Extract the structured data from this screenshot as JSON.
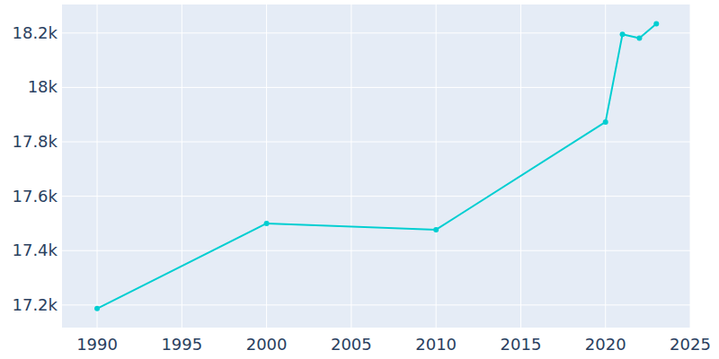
{
  "chart_data": {
    "type": "line",
    "x": [
      1990,
      2000,
      2010,
      2020,
      2021,
      2022,
      2023
    ],
    "values": [
      17187,
      17500,
      17477,
      17873,
      18195,
      18181,
      18234
    ],
    "color": "#00ced1",
    "marker": "circle",
    "xlim": [
      1987.93,
      2025
    ],
    "xticks": [
      1990,
      1995,
      2000,
      2005,
      2010,
      2015,
      2020,
      2025
    ],
    "ylim": [
      17117,
      18305
    ],
    "yticks": [
      {
        "value": 17200,
        "label": "17.2k"
      },
      {
        "value": 17400,
        "label": "17.4k"
      },
      {
        "value": 17600,
        "label": "17.6k"
      },
      {
        "value": 17800,
        "label": "17.8k"
      },
      {
        "value": 18000,
        "label": "18k"
      },
      {
        "value": 18200,
        "label": "18.2k"
      }
    ],
    "grid": true
  }
}
